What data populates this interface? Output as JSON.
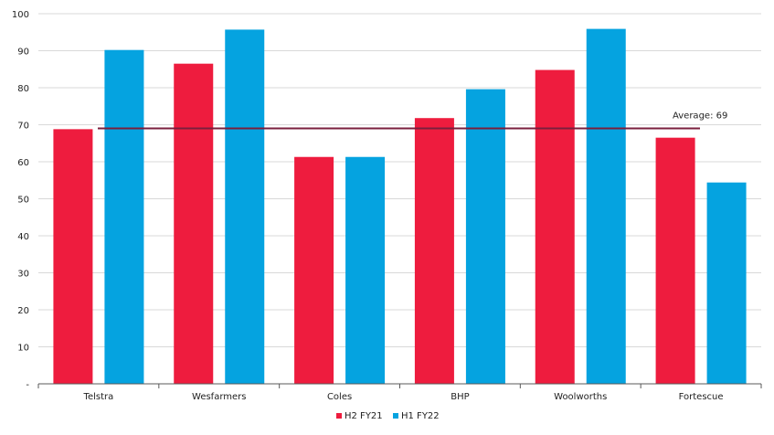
{
  "chart_data": {
    "type": "bar",
    "title": "",
    "xlabel": "",
    "ylabel": "",
    "categories": [
      "Telstra",
      "Wesfarmers",
      "Coles",
      "BHP",
      "Woolworths",
      "Fortescue"
    ],
    "series": [
      {
        "name": "H2 FY21",
        "color": "#ee1c3e",
        "values": [
          68.8,
          86.5,
          61.3,
          71.8,
          84.8,
          66.5
        ]
      },
      {
        "name": "H1 FY22",
        "color": "#05a3e0",
        "values": [
          90.2,
          95.7,
          61.3,
          79.6,
          95.9,
          54.4
        ]
      }
    ],
    "ylim": [
      0,
      100
    ],
    "yticks": [
      0,
      10,
      20,
      30,
      40,
      50,
      60,
      70,
      80,
      90,
      100
    ],
    "ytick_labels": [
      "-",
      "10",
      "20",
      "30",
      "40",
      "50",
      "60",
      "70",
      "80",
      "90",
      "100"
    ],
    "grid": true,
    "legend_position": "bottom",
    "average": {
      "value": 69,
      "label": "Average: 69",
      "color": "#7a1f3d"
    }
  }
}
